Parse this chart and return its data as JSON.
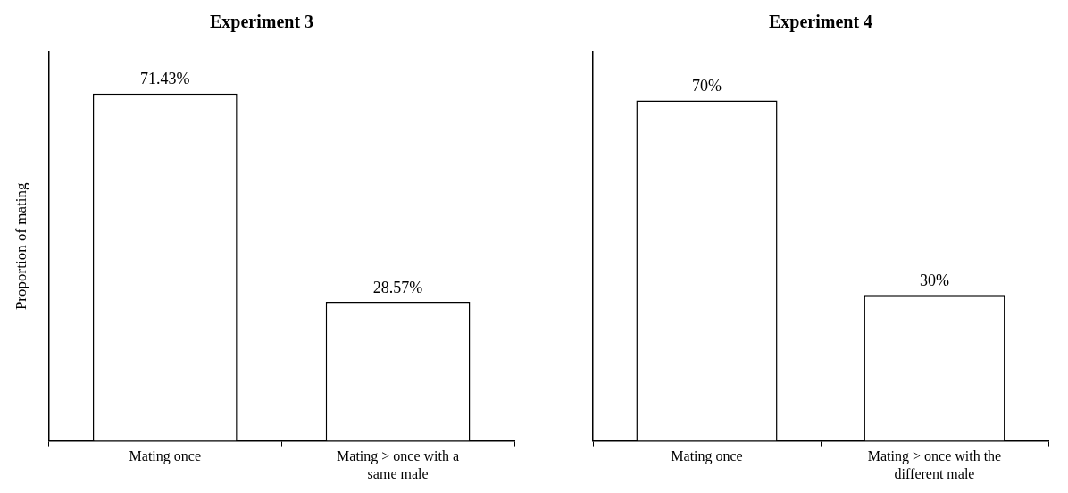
{
  "chart_data": [
    {
      "type": "bar",
      "title": "Experiment 3",
      "ylabel": "Proportion of mating",
      "categories": [
        "Mating once",
        "Mating > once with a same male"
      ],
      "values": [
        71.43,
        28.57
      ],
      "value_labels": [
        "71.43%",
        "28.57%"
      ],
      "color": "#ffffff",
      "grid": false,
      "legend": false,
      "tick_labels": "x"
    },
    {
      "type": "bar",
      "title": "Experiment 4",
      "categories": [
        "Mating once",
        "Mating > once with the different male"
      ],
      "values": [
        70,
        30
      ],
      "value_labels": [
        "70%",
        "30%"
      ],
      "color": "#ffffff",
      "grid": false,
      "legend": false,
      "tick_labels": "x"
    }
  ]
}
